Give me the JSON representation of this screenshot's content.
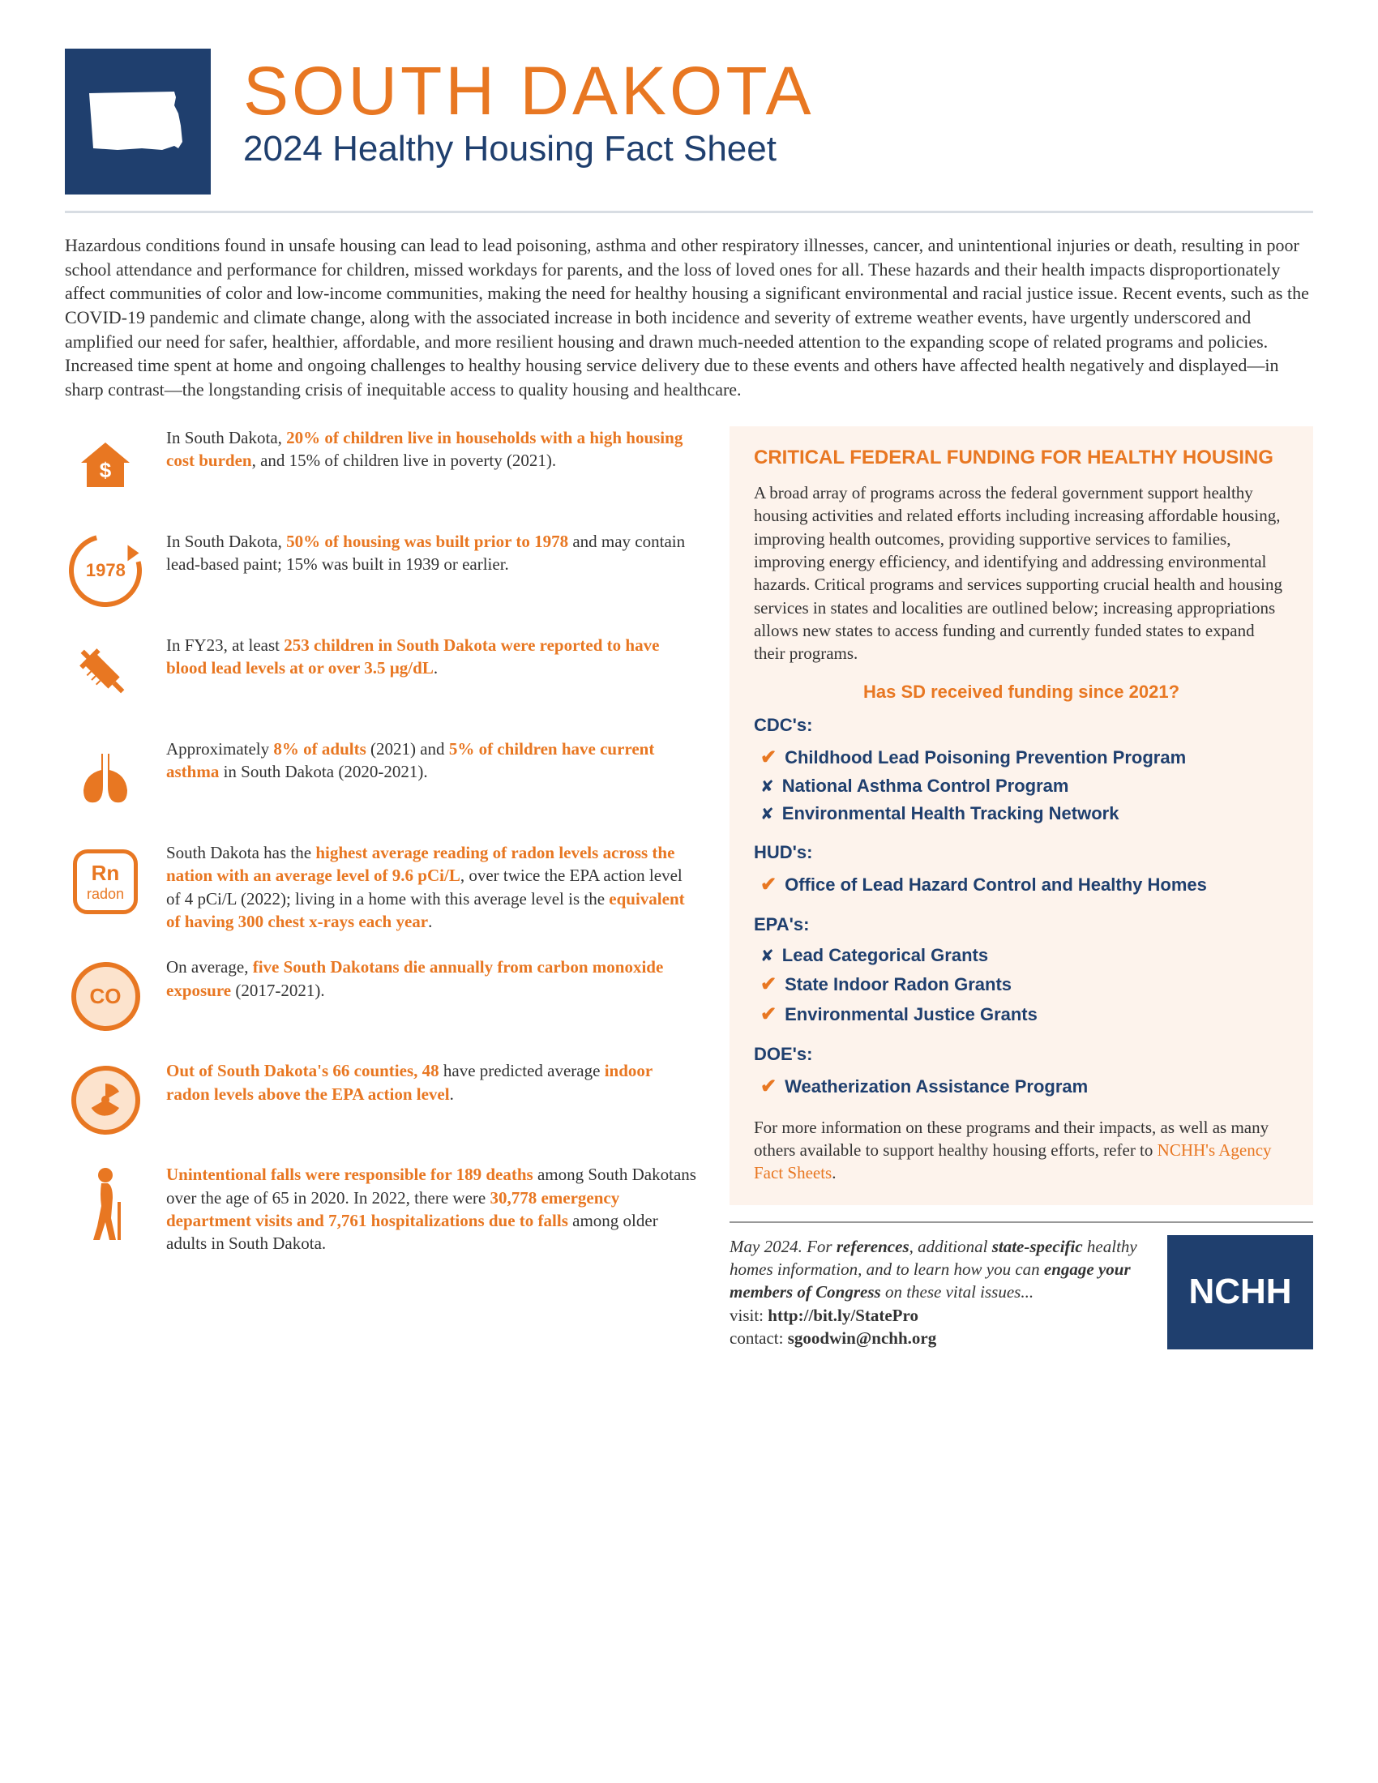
{
  "colors": {
    "orange": "#e87722",
    "navy": "#1f3f6e",
    "bg_cream": "#fdf3ec",
    "light_orange": "#fce3cd"
  },
  "header": {
    "state_name": "SOUTH DAKOTA",
    "subtitle": "2024 Healthy Housing Fact Sheet"
  },
  "intro": "Hazardous conditions found in unsafe housing can lead to lead poisoning, asthma and other respiratory illnesses, cancer, and unintentional injuries or death, resulting in poor school attendance and performance for children, missed workdays for parents, and the loss of loved ones for all. These hazards and their health impacts disproportionately affect communities of color and low-income communities, making the need for healthy housing a significant environmental and racial justice issue. Recent events, such as the COVID-19 pandemic and climate change, along with the associated increase in both incidence and severity of extreme weather events, have urgently underscored and amplified our need for safer, healthier, affordable, and more resilient housing and drawn much-needed attention to the expanding scope of related programs and policies. Increased time spent at home and ongoing challenges to healthy housing service delivery due to these events and others have affected health negatively and displayed—in sharp contrast—the longstanding crisis of inequitable access to quality housing and healthcare.",
  "facts": {
    "f1": {
      "pre": "In South Dakota, ",
      "hl": "20% of children live in households with a high housing cost burden",
      "post": ", and 15% of children live in poverty (2021)."
    },
    "f2": {
      "pre": "In South Dakota, ",
      "hl": "50% of housing was built prior to 1978",
      "post": " and may contain lead-based paint; 15% was built in 1939 or earlier.",
      "year": "1978"
    },
    "f3": {
      "pre": "In FY23, at least ",
      "hl": "253 children in South Dakota were reported to have blood lead levels at or over 3.5 µg/dL",
      "post": "."
    },
    "f4": {
      "pre": "Approximately ",
      "hl1": "8% of adults",
      "mid1": " (2021) and ",
      "hl2": "5% of children have current asthma",
      "post": " in South Dakota (2020-2021)."
    },
    "f5": {
      "pre": "South Dakota has the ",
      "hl1": "highest average reading of radon levels across the nation with an average level of 9.6 pCi/L",
      "mid": ", over twice the EPA action level of 4 pCi/L (2022); living in a home with this average level is the ",
      "hl2": "equivalent of having 300 chest x-rays each year",
      "post": ".",
      "sym": "Rn",
      "lab": "radon"
    },
    "f6": {
      "pre": "On average, ",
      "hl": "five South Dakotans die annually from carbon monoxide exposure",
      "post": " (2017-2021).",
      "co": "CO"
    },
    "f7": {
      "hl1": "Out of South Dakota's 66 counties, 48",
      "mid": " have predicted average ",
      "hl2": "indoor radon levels above the EPA action level",
      "post": "."
    },
    "f8": {
      "hl1": "Unintentional falls were responsible for 189 deaths",
      "mid": " among South Dakotans over the age of 65 in 2020. In 2022, there were ",
      "hl2": "30,778 emergency department visits and 7,761 hospitalizations due to falls",
      "post": " among older adults in South Dakota."
    }
  },
  "funding": {
    "title": "CRITICAL FEDERAL FUNDING FOR HEALTHY HOUSING",
    "intro": "A broad array of programs across the federal government support healthy housing activities and related efforts including increasing affordable housing, improving health outcomes, providing supportive services to families, improving energy efficiency, and identifying and addressing environmental hazards. Critical programs and services supporting crucial health and housing services in states and localities are outlined below; increasing appropriations allows new states to access funding and currently funded states to expand their programs.",
    "question": "Has SD received funding since 2021?",
    "agencies": [
      {
        "name": "CDC's:",
        "programs": [
          {
            "mark": "yes",
            "label": "Childhood Lead Poisoning Prevention Program"
          },
          {
            "mark": "no",
            "label": "National Asthma Control Program"
          },
          {
            "mark": "no",
            "label": "Environmental Health Tracking Network"
          }
        ]
      },
      {
        "name": "HUD's:",
        "programs": [
          {
            "mark": "yes",
            "label": "Office of Lead Hazard Control and Healthy Homes"
          }
        ]
      },
      {
        "name": "EPA's:",
        "programs": [
          {
            "mark": "no",
            "label": "Lead Categorical Grants"
          },
          {
            "mark": "yes",
            "label": "State Indoor Radon Grants"
          },
          {
            "mark": "yes",
            "label": "Environmental Justice Grants"
          }
        ]
      },
      {
        "name": "DOE's:",
        "programs": [
          {
            "mark": "yes",
            "label": "Weatherization Assistance Program"
          }
        ]
      }
    ],
    "outro_pre": "For more information on these programs and their impacts, as well as many others available to support healthy housing efforts, refer to ",
    "outro_link": "NCHH's Agency Fact Sheets",
    "outro_post": "."
  },
  "footer": {
    "date": "May 2024. ",
    "t1": "For ",
    "b1": "references",
    "t2": ", additional ",
    "b2": "state-specific",
    "t3": " healthy homes information, and to learn how you can ",
    "b3": "engage your members of Congress",
    "t4": " on these vital issues...",
    "visit_label": "visit: ",
    "visit_url": "http://bit.ly/StatePro",
    "contact_label": "contact: ",
    "contact_email": "sgoodwin@nchh.org",
    "logo": "NCHH"
  }
}
